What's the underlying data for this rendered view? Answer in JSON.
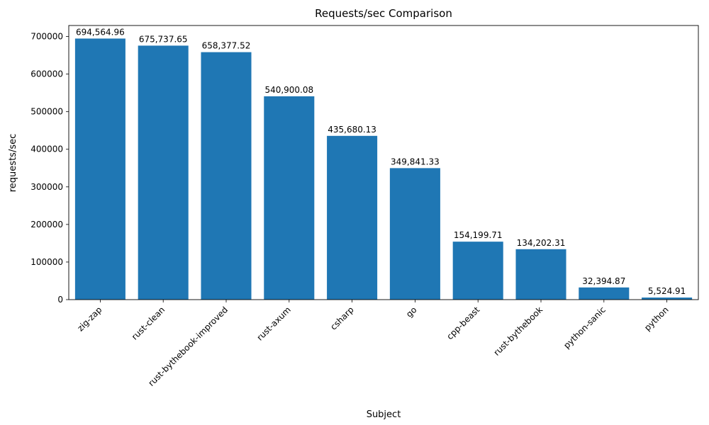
{
  "chart": {
    "title": "Requests/sec Comparison",
    "xlabel": "Subject",
    "ylabel": "requests/sec"
  },
  "chart_data": {
    "type": "bar",
    "title": "Requests/sec Comparison",
    "xlabel": "Subject",
    "ylabel": "requests/sec",
    "categories": [
      "zig-zap",
      "rust-clean",
      "rust-bythebook-improved",
      "rust-axum",
      "csharp",
      "go",
      "cpp-beast",
      "rust-bythebook",
      "python-sanic",
      "python"
    ],
    "values": [
      694564.96,
      675737.65,
      658377.52,
      540900.08,
      435680.13,
      349841.33,
      154199.71,
      134202.31,
      32394.87,
      5524.91
    ],
    "bar_labels": [
      "694,564.96",
      "675,737.65",
      "658,377.52",
      "540,900.08",
      "435,680.13",
      "349,841.33",
      "154,199.71",
      "134,202.31",
      "32,394.87",
      "5,524.91"
    ],
    "ylim": [
      0,
      729293
    ],
    "yticks": [
      0,
      100000,
      200000,
      300000,
      400000,
      500000,
      600000,
      700000
    ],
    "ytick_labels": [
      "0",
      "100000",
      "200000",
      "300000",
      "400000",
      "500000",
      "600000",
      "700000"
    ],
    "bar_color": "#1f77b4",
    "spine_color": "#000000",
    "grid": false,
    "legend": false,
    "xtick_rotation_deg": 45
  }
}
